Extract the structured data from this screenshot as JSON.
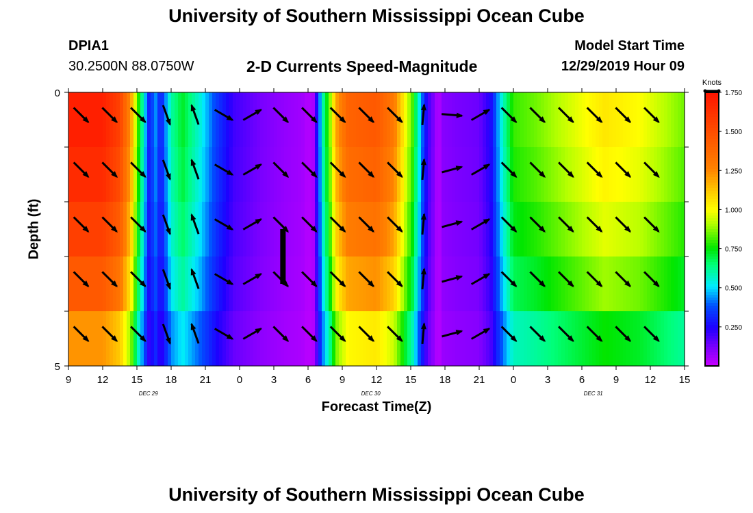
{
  "header": {
    "title": "University of Southern Mississippi Ocean Cube",
    "station": "DPIA1",
    "coords": "30.2500N 88.0750W",
    "subtitle": "2-D Currents Speed-Magnitude",
    "model_start_label": "Model Start Time",
    "model_start_value": "12/29/2019 Hour 09"
  },
  "footer": {
    "title": "University of Southern Mississippi Ocean Cube"
  },
  "chart_data": {
    "type": "heatmap",
    "title": "2-D Currents Speed-Magnitude",
    "xlabel": "Forecast Time(Z)",
    "ylabel": "Depth (ft)",
    "x_tick_labels": [
      "9",
      "12",
      "15",
      "18",
      "21",
      "0",
      "3",
      "6",
      "9",
      "12",
      "15",
      "18",
      "21",
      "0",
      "3",
      "6",
      "9",
      "12",
      "15"
    ],
    "x_range_hours": [
      0,
      54
    ],
    "date_labels": [
      {
        "text": "DEC 29",
        "at_hour": 7
      },
      {
        "text": "DEC 30",
        "at_hour": 26.5
      },
      {
        "text": "DEC 31",
        "at_hour": 46
      }
    ],
    "y_tick_labels": [
      "0",
      "5"
    ],
    "ylim": [
      0,
      5
    ],
    "depth_layers": 5,
    "colorbar": {
      "label": "Knots",
      "ticks": [
        "0.250",
        "0.500",
        "0.750",
        "1.000",
        "1.250",
        "1.500",
        "1.750"
      ],
      "range": [
        0,
        1.75
      ]
    },
    "speed_profile": [
      {
        "t": 0.0,
        "v": 1.7
      },
      {
        "t": 3.0,
        "v": 1.7
      },
      {
        "t": 4.5,
        "v": 1.55
      },
      {
        "t": 5.5,
        "v": 1.2
      },
      {
        "t": 6.0,
        "v": 0.85
      },
      {
        "t": 6.6,
        "v": 0.55
      },
      {
        "t": 7.1,
        "v": 0.28
      },
      {
        "t": 7.6,
        "v": 0.45
      },
      {
        "t": 8.1,
        "v": 0.28
      },
      {
        "t": 9.0,
        "v": 0.6
      },
      {
        "t": 10.0,
        "v": 0.72
      },
      {
        "t": 11.5,
        "v": 0.55
      },
      {
        "t": 13.0,
        "v": 0.35
      },
      {
        "t": 14.5,
        "v": 0.2
      },
      {
        "t": 17.0,
        "v": 0.12
      },
      {
        "t": 19.0,
        "v": 0.08
      },
      {
        "t": 20.5,
        "v": 0.06
      },
      {
        "t": 21.0,
        "v": 0.03
      },
      {
        "t": 21.5,
        "v": 0.05
      },
      {
        "t": 22.2,
        "v": 0.55
      },
      {
        "t": 22.8,
        "v": 0.8
      },
      {
        "t": 23.5,
        "v": 1.2
      },
      {
        "t": 24.5,
        "v": 1.4
      },
      {
        "t": 27.0,
        "v": 1.45
      },
      {
        "t": 28.5,
        "v": 1.3
      },
      {
        "t": 29.5,
        "v": 1.0
      },
      {
        "t": 30.2,
        "v": 0.8
      },
      {
        "t": 30.8,
        "v": 0.5
      },
      {
        "t": 31.5,
        "v": 0.2
      },
      {
        "t": 32.0,
        "v": 0.12
      },
      {
        "t": 32.4,
        "v": 0.02
      },
      {
        "t": 32.8,
        "v": 0.1
      },
      {
        "t": 34.0,
        "v": 0.12
      },
      {
        "t": 36.0,
        "v": 0.14
      },
      {
        "t": 37.0,
        "v": 0.25
      },
      {
        "t": 38.0,
        "v": 0.55
      },
      {
        "t": 39.0,
        "v": 0.8
      },
      {
        "t": 41.0,
        "v": 0.85
      },
      {
        "t": 44.0,
        "v": 0.95
      },
      {
        "t": 47.0,
        "v": 1.05
      },
      {
        "t": 50.0,
        "v": 1.0
      },
      {
        "t": 54.0,
        "v": 0.85
      }
    ],
    "layer_speed_factors": [
      1.0,
      0.97,
      0.92,
      0.85,
      0.72
    ],
    "current_vectors": {
      "times_hours": [
        0.5,
        3.0,
        5.5,
        8.0,
        10.5,
        13.0,
        15.5,
        18.0,
        20.5,
        23.0,
        25.5,
        28.0,
        30.5,
        33.0,
        35.5,
        38.0,
        40.5,
        43.0,
        45.5,
        48.0,
        50.5
      ],
      "directions_deg": [
        135,
        135,
        135,
        160,
        340,
        120,
        60,
        135,
        135,
        135,
        135,
        135,
        5,
        75,
        60,
        135,
        135,
        135,
        135,
        135,
        135
      ],
      "surface_direction_overrides": [
        {
          "index": 13,
          "direction_deg": 95
        }
      ]
    },
    "marker": {
      "at_hour": 18.8,
      "depth_from": 2.5,
      "depth_to": 3.5,
      "color": "#000000"
    }
  }
}
